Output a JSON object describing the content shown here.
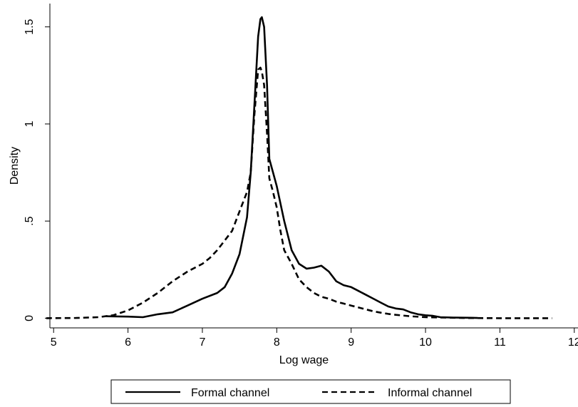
{
  "chart_data": {
    "type": "line",
    "title": "",
    "xlabel": "Log wage",
    "ylabel": "Density",
    "xlim": [
      4.95,
      12.05
    ],
    "ylim": [
      -0.05,
      1.62
    ],
    "x_ticks": [
      5,
      6,
      7,
      8,
      9,
      10,
      11,
      12
    ],
    "x_tick_labels": [
      "5",
      "6",
      "7",
      "8",
      "9",
      "10",
      "11",
      "12"
    ],
    "y_ticks": [
      0,
      0.5,
      1,
      1.5
    ],
    "y_tick_labels": [
      "0",
      ".5",
      "1",
      "1.5"
    ],
    "grid": false,
    "legend_position": "bottom",
    "series": [
      {
        "name": "Formal channel",
        "style": "solid",
        "color": "#000000",
        "points": [
          [
            5.7,
            0.01
          ],
          [
            6.0,
            0.008
          ],
          [
            6.2,
            0.005
          ],
          [
            6.4,
            0.02
          ],
          [
            6.6,
            0.03
          ],
          [
            6.8,
            0.065
          ],
          [
            7.0,
            0.1
          ],
          [
            7.2,
            0.13
          ],
          [
            7.3,
            0.16
          ],
          [
            7.4,
            0.23
          ],
          [
            7.5,
            0.33
          ],
          [
            7.6,
            0.52
          ],
          [
            7.65,
            0.75
          ],
          [
            7.7,
            1.1
          ],
          [
            7.75,
            1.45
          ],
          [
            7.78,
            1.54
          ],
          [
            7.8,
            1.55
          ],
          [
            7.83,
            1.5
          ],
          [
            7.87,
            1.2
          ],
          [
            7.9,
            0.82
          ],
          [
            7.95,
            0.75
          ],
          [
            8.0,
            0.68
          ],
          [
            8.1,
            0.5
          ],
          [
            8.2,
            0.35
          ],
          [
            8.3,
            0.28
          ],
          [
            8.4,
            0.255
          ],
          [
            8.5,
            0.26
          ],
          [
            8.6,
            0.27
          ],
          [
            8.7,
            0.24
          ],
          [
            8.8,
            0.19
          ],
          [
            8.9,
            0.17
          ],
          [
            9.0,
            0.16
          ],
          [
            9.1,
            0.14
          ],
          [
            9.2,
            0.12
          ],
          [
            9.3,
            0.1
          ],
          [
            9.4,
            0.08
          ],
          [
            9.5,
            0.06
          ],
          [
            9.6,
            0.05
          ],
          [
            9.7,
            0.045
          ],
          [
            9.8,
            0.03
          ],
          [
            9.9,
            0.02
          ],
          [
            10.0,
            0.015
          ],
          [
            10.1,
            0.012
          ],
          [
            10.2,
            0.005
          ],
          [
            10.4,
            0.003
          ],
          [
            10.6,
            0.002
          ],
          [
            10.7,
            0.001
          ]
        ]
      },
      {
        "name": "Informal channel",
        "style": "dashed",
        "color": "#000000",
        "points": [
          [
            4.9,
            0.0
          ],
          [
            5.3,
            0.001
          ],
          [
            5.6,
            0.005
          ],
          [
            5.8,
            0.015
          ],
          [
            6.0,
            0.04
          ],
          [
            6.2,
            0.08
          ],
          [
            6.4,
            0.13
          ],
          [
            6.6,
            0.19
          ],
          [
            6.8,
            0.24
          ],
          [
            7.0,
            0.28
          ],
          [
            7.1,
            0.31
          ],
          [
            7.2,
            0.35
          ],
          [
            7.3,
            0.4
          ],
          [
            7.4,
            0.45
          ],
          [
            7.5,
            0.55
          ],
          [
            7.6,
            0.65
          ],
          [
            7.65,
            0.75
          ],
          [
            7.7,
            1.05
          ],
          [
            7.75,
            1.28
          ],
          [
            7.78,
            1.29
          ],
          [
            7.8,
            1.27
          ],
          [
            7.83,
            1.2
          ],
          [
            7.87,
            0.95
          ],
          [
            7.9,
            0.72
          ],
          [
            7.95,
            0.65
          ],
          [
            8.0,
            0.57
          ],
          [
            8.05,
            0.45
          ],
          [
            8.1,
            0.35
          ],
          [
            8.2,
            0.28
          ],
          [
            8.3,
            0.2
          ],
          [
            8.4,
            0.16
          ],
          [
            8.5,
            0.13
          ],
          [
            8.6,
            0.11
          ],
          [
            8.7,
            0.1
          ],
          [
            8.8,
            0.085
          ],
          [
            8.9,
            0.075
          ],
          [
            9.0,
            0.065
          ],
          [
            9.1,
            0.055
          ],
          [
            9.2,
            0.045
          ],
          [
            9.3,
            0.035
          ],
          [
            9.4,
            0.028
          ],
          [
            9.5,
            0.022
          ],
          [
            9.6,
            0.017
          ],
          [
            9.8,
            0.01
          ],
          [
            10.0,
            0.005
          ],
          [
            10.5,
            0.001
          ],
          [
            11.0,
            0.0
          ],
          [
            11.7,
            0.0
          ]
        ]
      }
    ]
  }
}
